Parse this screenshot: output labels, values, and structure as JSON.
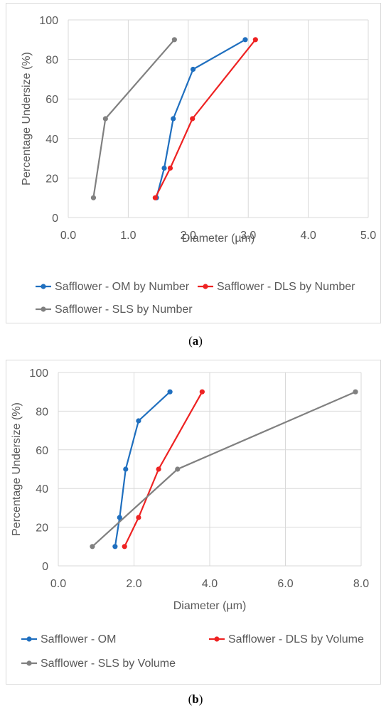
{
  "captions": [
    "a",
    "b"
  ],
  "chart_data": [
    {
      "type": "line",
      "title": "",
      "xlabel": "Diameter (µm)",
      "ylabel": "Percentage Undersize (%)",
      "xlim": [
        0,
        5
      ],
      "ylim": [
        0,
        100
      ],
      "xticks": [
        "0.0",
        "1.0",
        "2.0",
        "3.0",
        "4.0",
        "5.0"
      ],
      "yticks": [
        "0",
        "20",
        "40",
        "60",
        "80",
        "100"
      ],
      "grid": true,
      "legend": "bottom",
      "series": [
        {
          "name": "Safflower - OM by Number",
          "color": "#1f6fbf",
          "x": [
            1.47,
            1.6,
            1.75,
            2.08,
            2.95
          ],
          "y": [
            10,
            25,
            50,
            75,
            90
          ]
        },
        {
          "name": "Safflower - DLS by Number",
          "color": "#ee2222",
          "x": [
            1.45,
            1.7,
            2.07,
            3.12
          ],
          "y": [
            10,
            25,
            50,
            90
          ]
        },
        {
          "name": "Safflower - SLS by Number",
          "color": "#808080",
          "x": [
            0.42,
            0.62,
            1.77
          ],
          "y": [
            10,
            50,
            90
          ]
        }
      ]
    },
    {
      "type": "line",
      "title": "",
      "xlabel": "Diameter (µm)",
      "ylabel": "Percentage Undersize (%)",
      "xlim": [
        0,
        8
      ],
      "ylim": [
        0,
        100
      ],
      "xticks": [
        "0.0",
        "2.0",
        "4.0",
        "6.0",
        "8.0"
      ],
      "yticks": [
        "0",
        "20",
        "40",
        "60",
        "80",
        "100"
      ],
      "grid": true,
      "legend": "bottom",
      "series": [
        {
          "name": "Safflower - OM",
          "color": "#1f6fbf",
          "x": [
            1.5,
            1.62,
            1.78,
            2.12,
            2.95
          ],
          "y": [
            10,
            25,
            50,
            75,
            90
          ]
        },
        {
          "name": "Safflower - DLS by Volume",
          "color": "#ee2222",
          "x": [
            1.75,
            2.12,
            2.65,
            3.8
          ],
          "y": [
            10,
            25,
            50,
            90
          ]
        },
        {
          "name": "Safflower - SLS by Volume",
          "color": "#808080",
          "x": [
            0.9,
            3.15,
            7.85
          ],
          "y": [
            10,
            50,
            90
          ]
        }
      ]
    }
  ]
}
